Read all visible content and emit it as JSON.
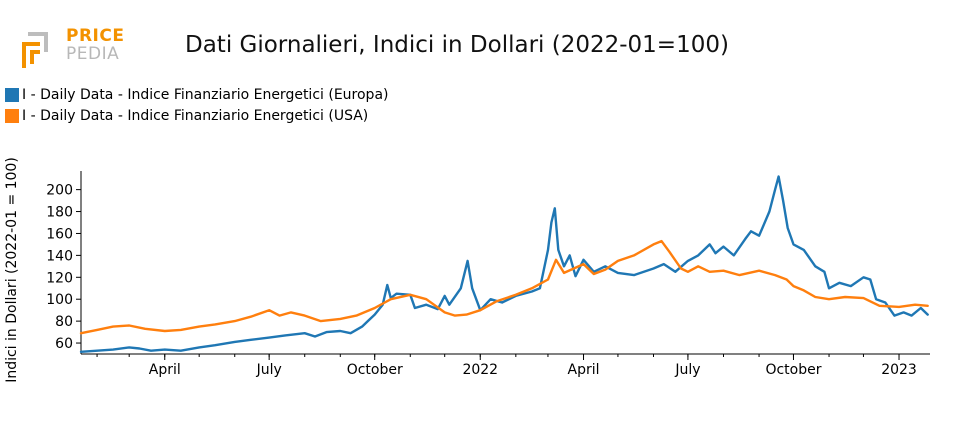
{
  "brand": {
    "logo_top": "PRICE",
    "logo_bottom": "PEDIA"
  },
  "chart_data": {
    "type": "line",
    "title": "Dati Giornalieri, Indici in Dollari (2022-01=100)",
    "ylabel": "Indici in Dollari (2022-01 = 100)",
    "xlabel": "",
    "ylim": [
      50,
      217
    ],
    "yticks": [
      60,
      80,
      100,
      120,
      140,
      160,
      180,
      200
    ],
    "xlim": [
      "2021-01-18",
      "2023-01-28"
    ],
    "xticks": [
      {
        "date": "2021-04-01",
        "label": "April"
      },
      {
        "date": "2021-07-01",
        "label": "July"
      },
      {
        "date": "2021-10-01",
        "label": "October"
      },
      {
        "date": "2022-01-01",
        "label": "2022"
      },
      {
        "date": "2022-04-01",
        "label": "April"
      },
      {
        "date": "2022-07-01",
        "label": "July"
      },
      {
        "date": "2022-10-01",
        "label": "October"
      },
      {
        "date": "2023-01-01",
        "label": "2023"
      }
    ],
    "legend_position": "top-left",
    "grid": false,
    "series": [
      {
        "name": "I - Daily Data - Indice Finanziario Energetici (Europa)",
        "color": "#1f77b4",
        "points": [
          [
            "2021-01-18",
            52
          ],
          [
            "2021-02-01",
            53
          ],
          [
            "2021-02-15",
            54
          ],
          [
            "2021-03-01",
            56
          ],
          [
            "2021-03-10",
            55
          ],
          [
            "2021-03-20",
            53
          ],
          [
            "2021-04-01",
            54
          ],
          [
            "2021-04-15",
            53
          ],
          [
            "2021-05-01",
            56
          ],
          [
            "2021-05-15",
            58
          ],
          [
            "2021-06-01",
            61
          ],
          [
            "2021-06-15",
            63
          ],
          [
            "2021-07-01",
            65
          ],
          [
            "2021-07-15",
            67
          ],
          [
            "2021-08-01",
            69
          ],
          [
            "2021-08-10",
            66
          ],
          [
            "2021-08-20",
            70
          ],
          [
            "2021-09-01",
            71
          ],
          [
            "2021-09-10",
            69
          ],
          [
            "2021-09-20",
            75
          ],
          [
            "2021-09-25",
            80
          ],
          [
            "2021-10-01",
            86
          ],
          [
            "2021-10-08",
            95
          ],
          [
            "2021-10-12",
            113
          ],
          [
            "2021-10-15",
            101
          ],
          [
            "2021-10-20",
            105
          ],
          [
            "2021-11-01",
            104
          ],
          [
            "2021-11-05",
            92
          ],
          [
            "2021-11-15",
            95
          ],
          [
            "2021-11-25",
            91
          ],
          [
            "2021-12-01",
            103
          ],
          [
            "2021-12-05",
            95
          ],
          [
            "2021-12-15",
            110
          ],
          [
            "2021-12-21",
            135
          ],
          [
            "2021-12-25",
            110
          ],
          [
            "2022-01-01",
            90
          ],
          [
            "2022-01-10",
            100
          ],
          [
            "2022-01-20",
            97
          ],
          [
            "2022-02-01",
            103
          ],
          [
            "2022-02-15",
            107
          ],
          [
            "2022-02-22",
            110
          ],
          [
            "2022-02-25",
            125
          ],
          [
            "2022-03-01",
            145
          ],
          [
            "2022-03-04",
            170
          ],
          [
            "2022-03-07",
            183
          ],
          [
            "2022-03-10",
            145
          ],
          [
            "2022-03-15",
            130
          ],
          [
            "2022-03-20",
            140
          ],
          [
            "2022-03-25",
            121
          ],
          [
            "2022-04-01",
            136
          ],
          [
            "2022-04-10",
            125
          ],
          [
            "2022-04-20",
            130
          ],
          [
            "2022-05-01",
            124
          ],
          [
            "2022-05-15",
            122
          ],
          [
            "2022-06-01",
            128
          ],
          [
            "2022-06-10",
            132
          ],
          [
            "2022-06-20",
            125
          ],
          [
            "2022-07-01",
            135
          ],
          [
            "2022-07-10",
            140
          ],
          [
            "2022-07-20",
            150
          ],
          [
            "2022-07-25",
            142
          ],
          [
            "2022-08-01",
            148
          ],
          [
            "2022-08-10",
            140
          ],
          [
            "2022-08-20",
            155
          ],
          [
            "2022-08-25",
            162
          ],
          [
            "2022-09-01",
            158
          ],
          [
            "2022-09-10",
            180
          ],
          [
            "2022-09-15",
            200
          ],
          [
            "2022-09-18",
            212
          ],
          [
            "2022-09-22",
            190
          ],
          [
            "2022-09-26",
            165
          ],
          [
            "2022-10-01",
            150
          ],
          [
            "2022-10-10",
            145
          ],
          [
            "2022-10-20",
            130
          ],
          [
            "2022-10-28",
            125
          ],
          [
            "2022-11-01",
            110
          ],
          [
            "2022-11-10",
            115
          ],
          [
            "2022-11-20",
            112
          ],
          [
            "2022-12-01",
            120
          ],
          [
            "2022-12-07",
            118
          ],
          [
            "2022-12-12",
            100
          ],
          [
            "2022-12-20",
            97
          ],
          [
            "2022-12-28",
            85
          ],
          [
            "2023-01-05",
            88
          ],
          [
            "2023-01-12",
            85
          ],
          [
            "2023-01-20",
            92
          ],
          [
            "2023-01-26",
            86
          ]
        ]
      },
      {
        "name": "I - Daily Data - Indice Finanziario Energetici (USA)",
        "color": "#ff7f0e",
        "points": [
          [
            "2021-01-18",
            69
          ],
          [
            "2021-02-01",
            72
          ],
          [
            "2021-02-15",
            75
          ],
          [
            "2021-03-01",
            76
          ],
          [
            "2021-03-15",
            73
          ],
          [
            "2021-04-01",
            71
          ],
          [
            "2021-04-15",
            72
          ],
          [
            "2021-05-01",
            75
          ],
          [
            "2021-05-15",
            77
          ],
          [
            "2021-06-01",
            80
          ],
          [
            "2021-06-15",
            84
          ],
          [
            "2021-07-01",
            90
          ],
          [
            "2021-07-10",
            85
          ],
          [
            "2021-07-20",
            88
          ],
          [
            "2021-08-01",
            85
          ],
          [
            "2021-08-15",
            80
          ],
          [
            "2021-09-01",
            82
          ],
          [
            "2021-09-15",
            85
          ],
          [
            "2021-10-01",
            92
          ],
          [
            "2021-10-15",
            100
          ],
          [
            "2021-11-01",
            104
          ],
          [
            "2021-11-15",
            100
          ],
          [
            "2021-12-01",
            88
          ],
          [
            "2021-12-10",
            85
          ],
          [
            "2021-12-20",
            86
          ],
          [
            "2022-01-01",
            90
          ],
          [
            "2022-01-15",
            98
          ],
          [
            "2022-02-01",
            104
          ],
          [
            "2022-02-15",
            110
          ],
          [
            "2022-03-01",
            118
          ],
          [
            "2022-03-08",
            136
          ],
          [
            "2022-03-15",
            124
          ],
          [
            "2022-04-01",
            132
          ],
          [
            "2022-04-10",
            123
          ],
          [
            "2022-04-20",
            127
          ],
          [
            "2022-05-01",
            135
          ],
          [
            "2022-05-15",
            140
          ],
          [
            "2022-06-01",
            150
          ],
          [
            "2022-06-08",
            153
          ],
          [
            "2022-06-15",
            143
          ],
          [
            "2022-06-25",
            128
          ],
          [
            "2022-07-01",
            125
          ],
          [
            "2022-07-10",
            130
          ],
          [
            "2022-07-20",
            125
          ],
          [
            "2022-08-01",
            126
          ],
          [
            "2022-08-15",
            122
          ],
          [
            "2022-09-01",
            126
          ],
          [
            "2022-09-15",
            122
          ],
          [
            "2022-09-25",
            118
          ],
          [
            "2022-10-01",
            112
          ],
          [
            "2022-10-10",
            108
          ],
          [
            "2022-10-20",
            102
          ],
          [
            "2022-11-01",
            100
          ],
          [
            "2022-11-15",
            102
          ],
          [
            "2022-12-01",
            101
          ],
          [
            "2022-12-15",
            94
          ],
          [
            "2023-01-01",
            93
          ],
          [
            "2023-01-15",
            95
          ],
          [
            "2023-01-26",
            94
          ]
        ]
      }
    ]
  }
}
